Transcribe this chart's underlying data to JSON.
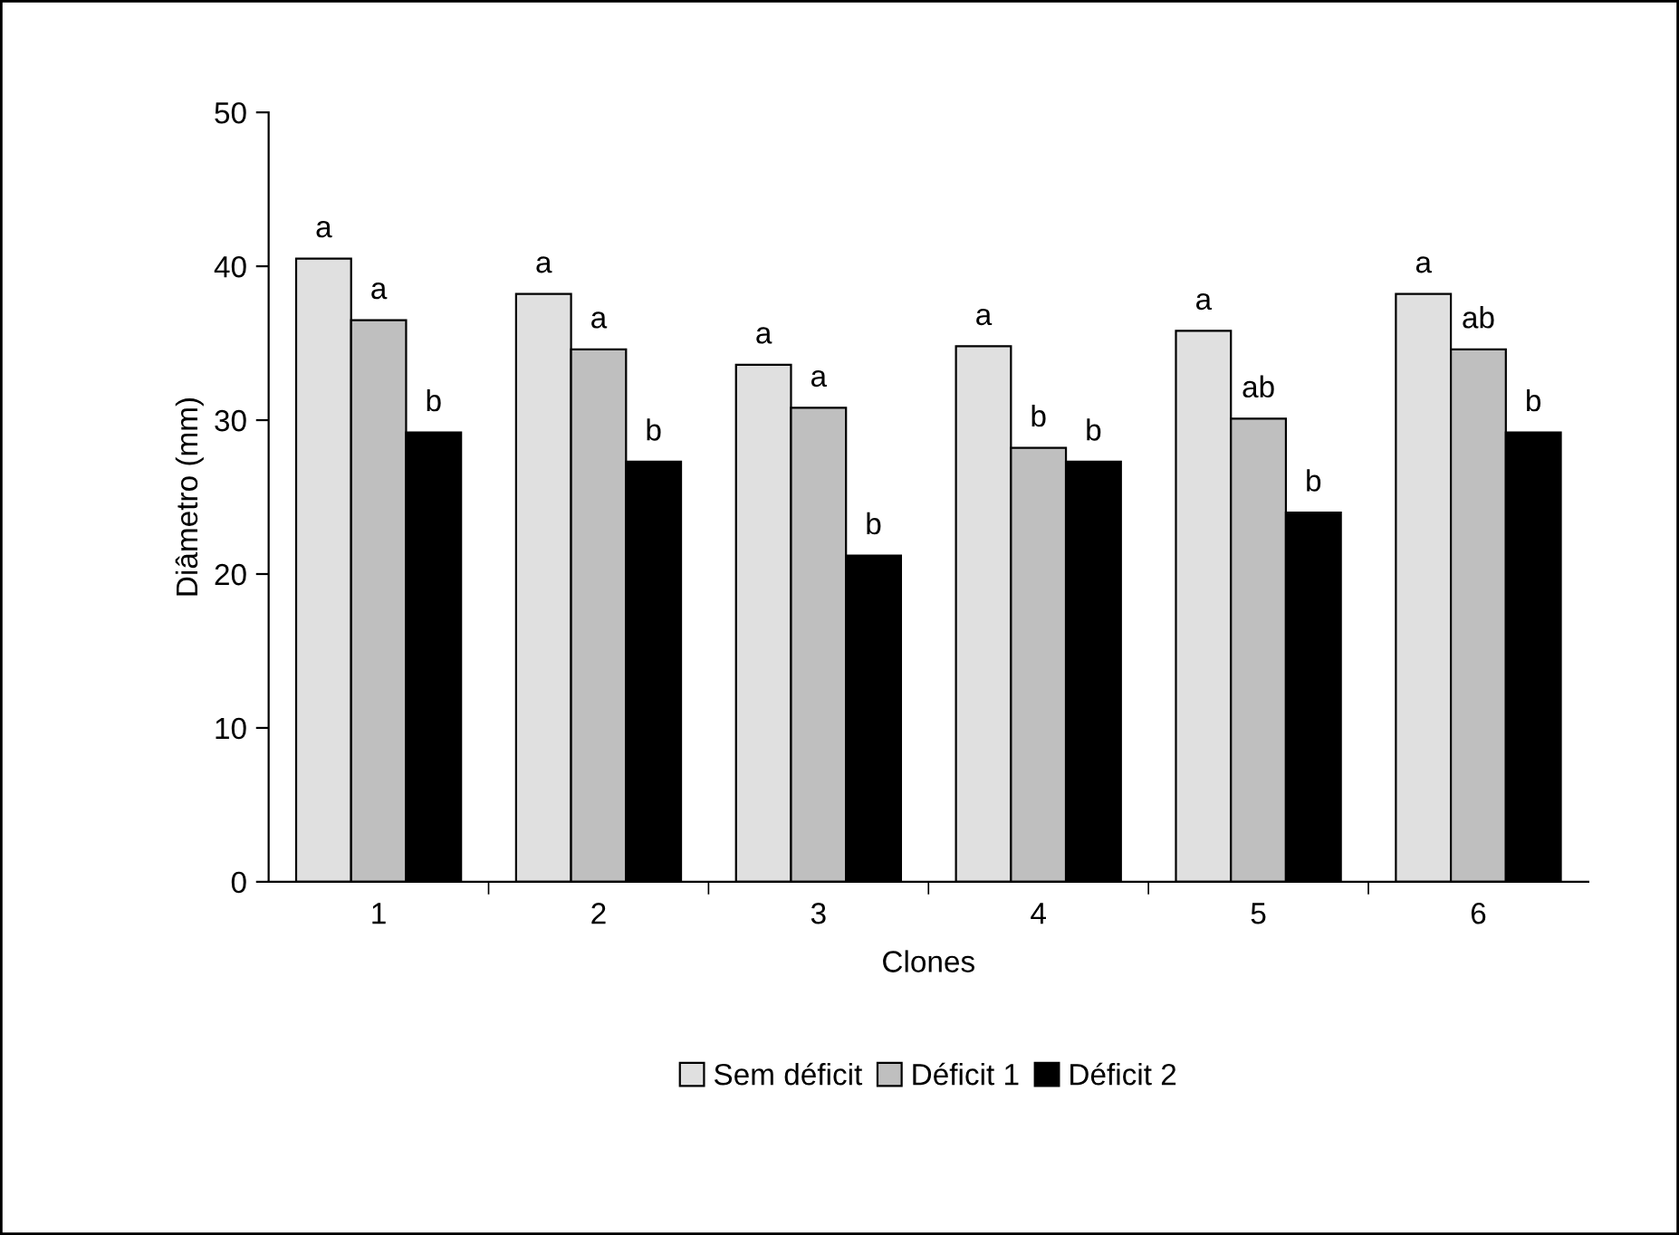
{
  "chart_data": {
    "type": "bar",
    "xlabel": "Clones",
    "ylabel": "Diâmetro (mm)",
    "categories": [
      "1",
      "2",
      "3",
      "4",
      "5",
      "6"
    ],
    "series": [
      {
        "name": "Sem déficit",
        "color": "#e0e0e0",
        "values": [
          40.5,
          38.2,
          33.6,
          34.8,
          35.8,
          38.2
        ],
        "value_labels": [
          "a",
          "a",
          "a",
          "a",
          "a",
          "a"
        ]
      },
      {
        "name": "Déficit 1",
        "color": "#bfbfbf",
        "values": [
          36.5,
          34.6,
          30.8,
          28.2,
          30.1,
          34.6
        ],
        "value_labels": [
          "a",
          "a",
          "a",
          "b",
          "ab",
          "ab"
        ]
      },
      {
        "name": "Déficit 2",
        "color": "#000000",
        "values": [
          29.2,
          27.3,
          21.2,
          27.3,
          24.0,
          29.2
        ],
        "value_labels": [
          "b",
          "b",
          "b",
          "b",
          "b",
          "b"
        ]
      }
    ],
    "ylim": [
      0,
      50
    ],
    "yticks": [
      0,
      10,
      20,
      30,
      40,
      50
    ],
    "legend": "bottom"
  }
}
